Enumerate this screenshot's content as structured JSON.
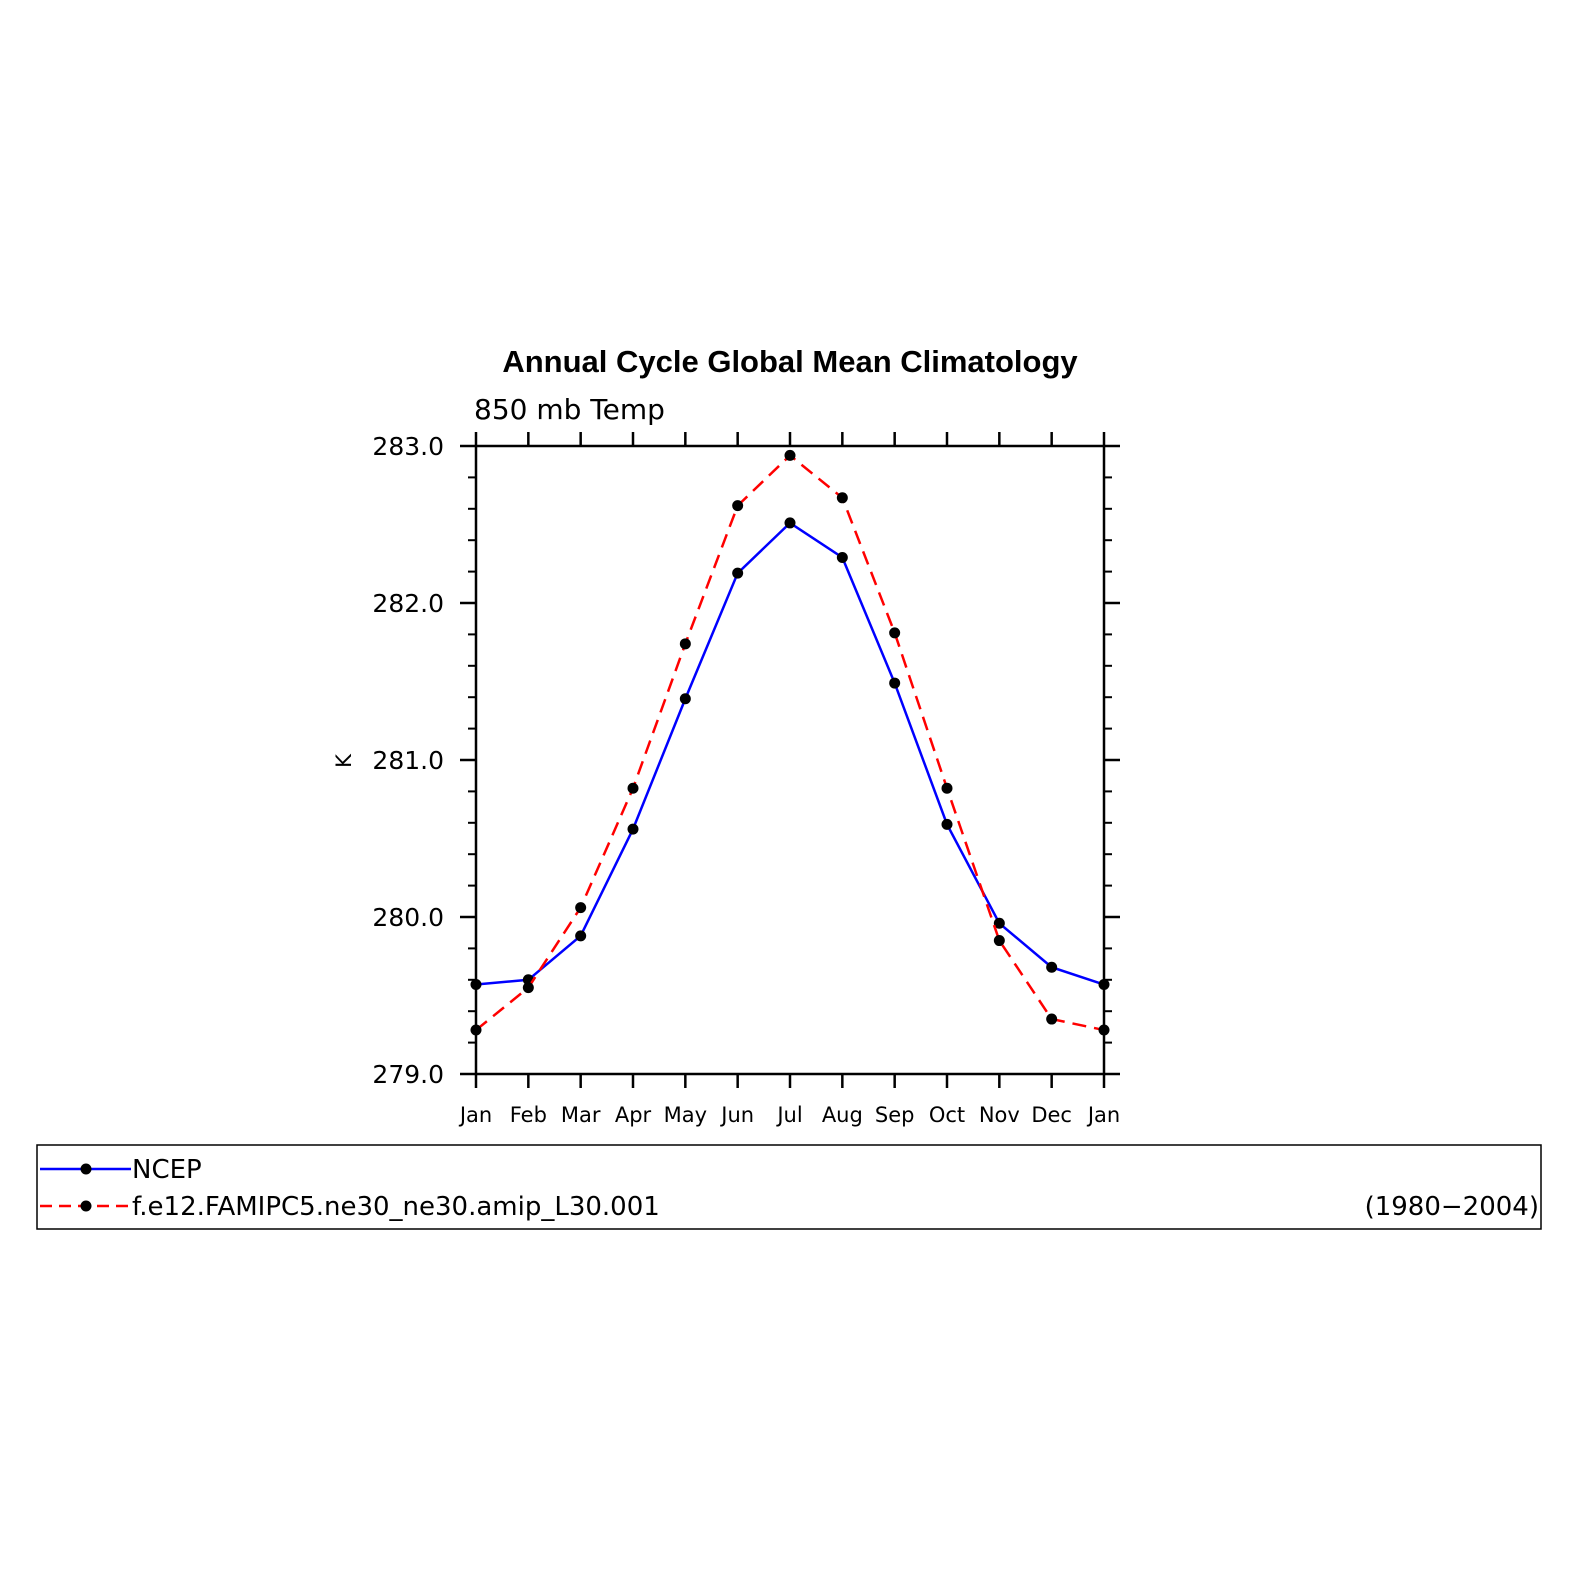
{
  "chart_data": {
    "type": "line",
    "title": "Annual Cycle Global Mean Climatology",
    "subtitle": "850 mb Temp",
    "ylabel": "K",
    "xlabel": "",
    "categories": [
      "Jan",
      "Feb",
      "Mar",
      "Apr",
      "May",
      "Jun",
      "Jul",
      "Aug",
      "Sep",
      "Oct",
      "Nov",
      "Dec",
      "Jan"
    ],
    "ylim": [
      279.0,
      283.0
    ],
    "yticks": [
      "279.0",
      "280.0",
      "281.0",
      "282.0",
      "283.0"
    ],
    "series": [
      {
        "name": "NCEP",
        "color": "#0000ff",
        "dash": "solid",
        "values": [
          279.57,
          279.6,
          279.88,
          280.56,
          281.39,
          282.19,
          282.51,
          282.29,
          281.49,
          280.59,
          279.96,
          279.68,
          279.57
        ]
      },
      {
        "name": "f.e12.FAMIPC5.ne30_ne30.amip_L30.001",
        "color": "#ff0000",
        "dash": "dashed",
        "values": [
          279.28,
          279.55,
          280.06,
          280.82,
          281.74,
          282.62,
          282.94,
          282.67,
          281.81,
          280.82,
          279.85,
          279.35,
          279.28
        ]
      }
    ],
    "legend": {
      "position": "bottom",
      "period": "(1980−2004)"
    },
    "grid": false,
    "marker_color": "#000000"
  }
}
